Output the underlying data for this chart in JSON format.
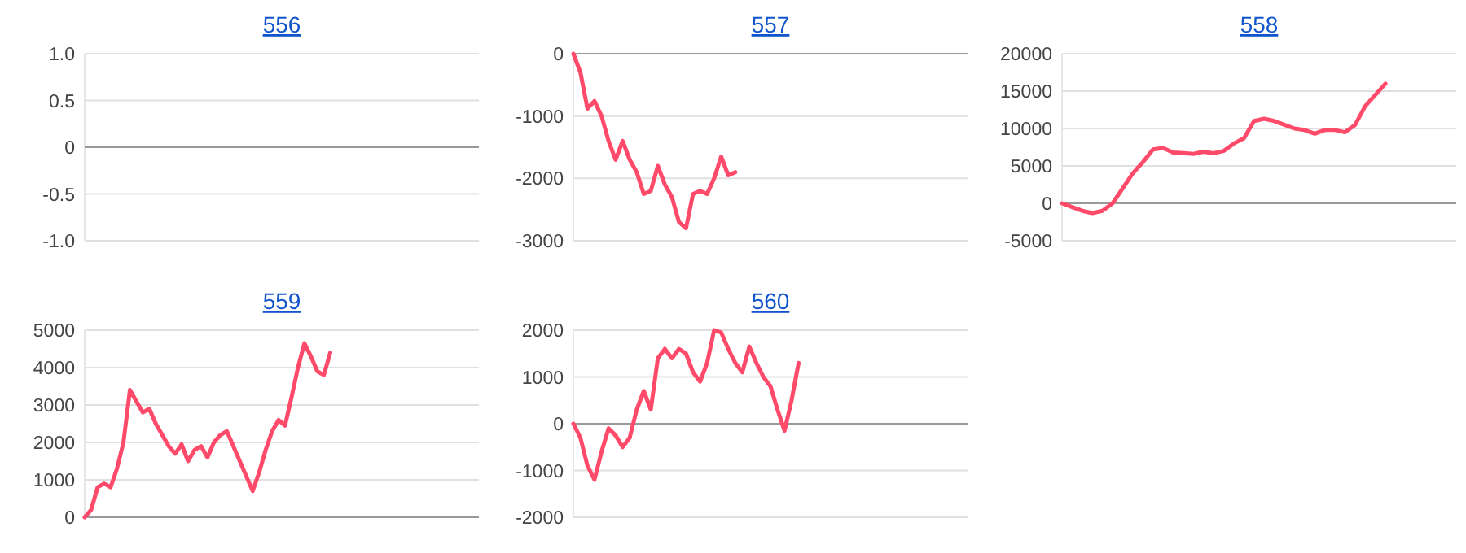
{
  "chart_data": [
    {
      "type": "line",
      "title": "556",
      "categories": [
        null,
        null,
        null,
        null,
        null,
        null,
        null,
        null,
        null,
        null
      ],
      "series": [
        {
          "values": [
            null,
            null,
            null,
            null,
            null,
            null,
            null,
            null,
            null,
            null
          ]
        }
      ],
      "ylim": [
        -1,
        1
      ],
      "yticks": [
        {
          "value": 1,
          "label": "1.0"
        },
        0.5,
        0,
        -0.5,
        {
          "value": -1,
          "label": "-1.0"
        }
      ],
      "grid": "y",
      "tick_labels": "y"
    },
    {
      "type": "line",
      "title": "557",
      "categories": [
        null,
        null,
        null,
        null,
        null,
        null,
        null,
        null,
        null,
        null,
        null,
        null,
        null,
        null,
        null,
        null,
        null,
        null,
        null,
        null,
        null,
        null,
        null,
        null,
        null,
        null,
        null,
        null,
        null,
        null,
        null,
        null,
        null,
        null,
        null,
        null,
        null,
        null,
        null,
        null,
        null,
        null,
        null,
        null,
        null,
        null,
        null,
        null,
        null,
        null,
        null,
        null,
        null,
        null,
        null,
        null,
        null
      ],
      "series": [
        {
          "color": "#ff4a6a",
          "values": [
            0,
            -300,
            -880,
            -760,
            -1000,
            -1400,
            -1700,
            -1400,
            -1700,
            -1900,
            -2250,
            -2200,
            -1800,
            -2100,
            -2300,
            -2700,
            -2800,
            -2250,
            -2200,
            -2250,
            -2000,
            -1650,
            -1950,
            -1900,
            null,
            null,
            null,
            null,
            null,
            null,
            null,
            null,
            null,
            null,
            null,
            null,
            null,
            null,
            null,
            null,
            null,
            null,
            null,
            null,
            null,
            null,
            null,
            null,
            null,
            null,
            null,
            null,
            null,
            null,
            null,
            null,
            null
          ]
        }
      ],
      "ylim": [
        -3000,
        0
      ],
      "yticks": [
        0,
        -1000,
        -2000,
        -3000
      ],
      "grid": "y",
      "tick_labels": "y"
    },
    {
      "type": "line",
      "title": "558",
      "categories": [
        null,
        null,
        null,
        null,
        null,
        null,
        null,
        null,
        null,
        null,
        null,
        null,
        null,
        null,
        null,
        null,
        null,
        null,
        null,
        null,
        null,
        null,
        null,
        null,
        null,
        null,
        null,
        null,
        null,
        null,
        null,
        null,
        null,
        null,
        null,
        null,
        null,
        null,
        null,
        null
      ],
      "series": [
        {
          "color": "#ff4a6a",
          "values": [
            0,
            -500,
            -1000,
            -1300,
            -1000,
            0,
            2000,
            4000,
            5500,
            7200,
            7400,
            6800,
            6700,
            6600,
            6900,
            6700,
            7000,
            8000,
            8700,
            11000,
            11300,
            11000,
            10500,
            10000,
            9800,
            9300,
            9800,
            9800,
            9500,
            10500,
            13000,
            14500,
            16000,
            null,
            null,
            null,
            null,
            null,
            null,
            null
          ]
        }
      ],
      "ylim": [
        -5000,
        20000
      ],
      "yticks": [
        20000,
        15000,
        10000,
        5000,
        0,
        -5000
      ],
      "grid": "y",
      "tick_labels": "y"
    },
    {
      "type": "line",
      "title": "559",
      "categories": [
        null,
        null,
        null,
        null,
        null,
        null,
        null,
        null,
        null,
        null,
        null,
        null,
        null,
        null,
        null,
        null,
        null,
        null,
        null,
        null,
        null,
        null,
        null,
        null,
        null,
        null,
        null,
        null,
        null,
        null,
        null,
        null,
        null,
        null,
        null,
        null,
        null,
        null,
        null,
        null,
        null,
        null,
        null,
        null,
        null,
        null,
        null,
        null,
        null,
        null,
        null,
        null,
        null,
        null,
        null,
        null,
        null,
        null,
        null,
        null,
        null,
        null
      ],
      "series": [
        {
          "color": "#ff4a6a",
          "values": [
            0,
            200,
            800,
            900,
            800,
            1300,
            2000,
            3400,
            3100,
            2800,
            2900,
            2500,
            2200,
            1900,
            1700,
            1950,
            1500,
            1800,
            1900,
            1600,
            2000,
            2200,
            2300,
            1900,
            1500,
            1100,
            700,
            1200,
            1800,
            2300,
            2600,
            2450,
            3200,
            4000,
            4650,
            4300,
            3900,
            3800,
            4400,
            null,
            null,
            null,
            null,
            null,
            null,
            null,
            null,
            null,
            null,
            null,
            null,
            null,
            null,
            null,
            null,
            null,
            null,
            null,
            null,
            null,
            null,
            null
          ]
        }
      ],
      "ylim": [
        0,
        5000
      ],
      "yticks": [
        5000,
        4000,
        3000,
        2000,
        1000,
        0
      ],
      "grid": "y",
      "tick_labels": "y"
    },
    {
      "type": "line",
      "title": "560",
      "categories": [
        null,
        null,
        null,
        null,
        null,
        null,
        null,
        null,
        null,
        null,
        null,
        null,
        null,
        null,
        null,
        null,
        null,
        null,
        null,
        null,
        null,
        null,
        null,
        null,
        null,
        null,
        null,
        null,
        null,
        null,
        null,
        null,
        null,
        null,
        null,
        null,
        null,
        null,
        null,
        null,
        null,
        null,
        null,
        null,
        null,
        null,
        null,
        null,
        null,
        null,
        null,
        null,
        null,
        null,
        null,
        null,
        null
      ],
      "series": [
        {
          "color": "#ff4a6a",
          "values": [
            0,
            -300,
            -900,
            -1200,
            -600,
            -100,
            -250,
            -500,
            -300,
            300,
            700,
            300,
            1400,
            1600,
            1400,
            1600,
            1500,
            1100,
            900,
            1300,
            2000,
            1950,
            1600,
            1300,
            1100,
            1650,
            1300,
            1000,
            800,
            300,
            -150,
            500,
            1300,
            null,
            null,
            null,
            null,
            null,
            null,
            null,
            null,
            null,
            null,
            null,
            null,
            null,
            null,
            null,
            null,
            null,
            null,
            null,
            null,
            null,
            null,
            null,
            null
          ]
        }
      ],
      "ylim": [
        -2000,
        2000
      ],
      "yticks": [
        2000,
        1000,
        0,
        -1000,
        -2000
      ],
      "grid": "y",
      "tick_labels": "y"
    }
  ]
}
